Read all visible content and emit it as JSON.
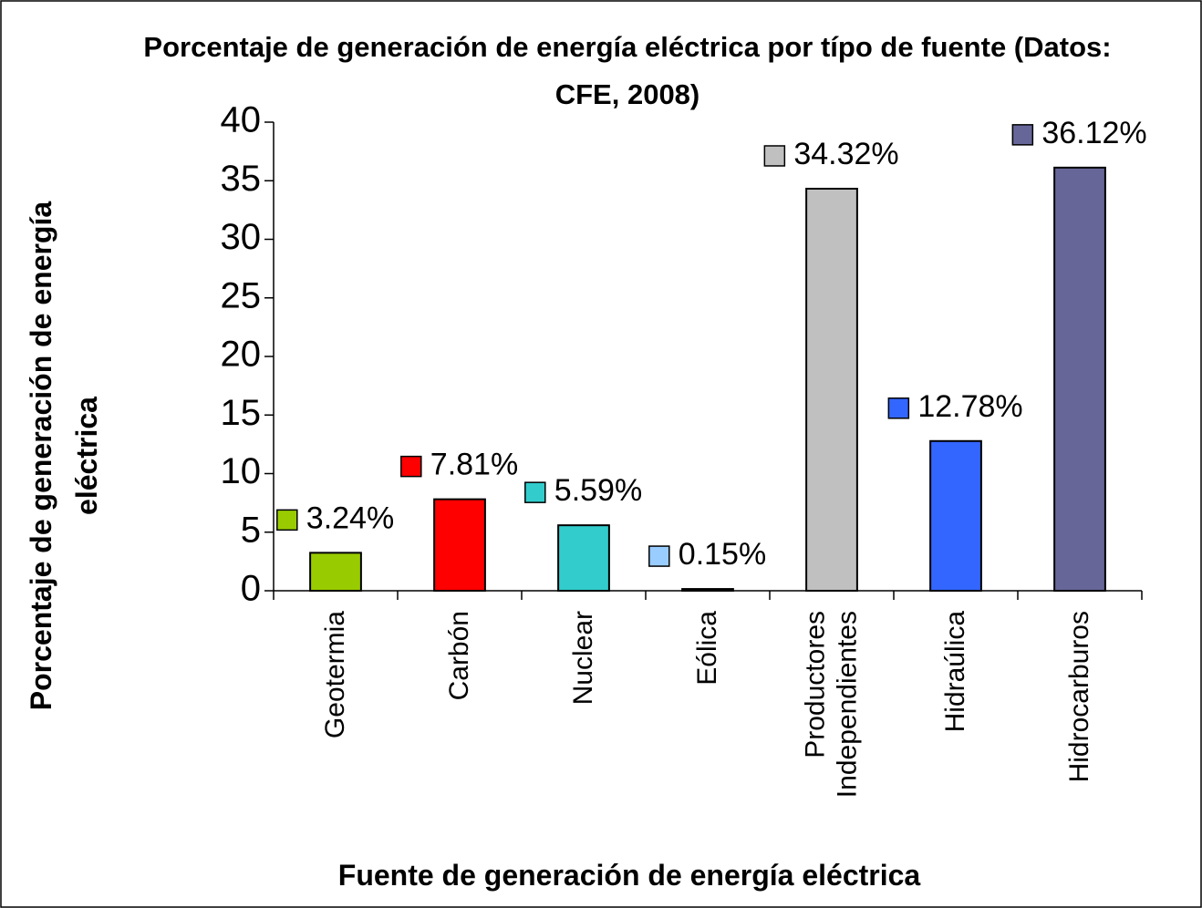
{
  "chart_data": {
    "type": "bar",
    "title": "Porcentaje de generación de energía eléctrica por típo de fuente (Datos: CFE, 2008)",
    "y_axis_label": "Porcentaje de generación de energía eléctrica",
    "x_axis_label": "Fuente de generación de energía eléctrica",
    "categories": [
      "Geotermia",
      "Carbón",
      "Nuclear",
      "Eólica",
      "Productores Independientes",
      "Hidraúlica",
      "Hidrocarburos"
    ],
    "values": [
      3.24,
      7.81,
      5.59,
      0.15,
      34.32,
      12.78,
      36.12
    ],
    "value_labels": [
      "3.24%",
      "7.81%",
      "5.59%",
      "0.15%",
      "34.32%",
      "12.78%",
      "36.12%"
    ],
    "colors": [
      "#99cc00",
      "#ff0000",
      "#33cccc",
      "#99ccff",
      "#c0c0c0",
      "#3366ff",
      "#666699"
    ],
    "ylim": [
      0,
      40
    ],
    "yticks": [
      0,
      5,
      10,
      15,
      20,
      25,
      30,
      35,
      40
    ],
    "grid": false
  }
}
